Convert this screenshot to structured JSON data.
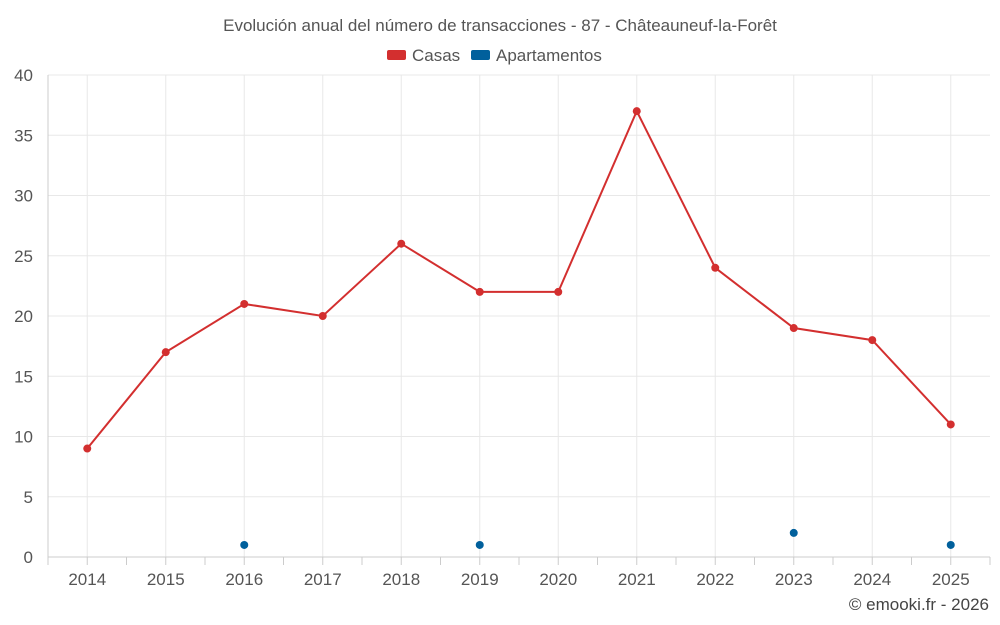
{
  "chart_data": {
    "type": "line",
    "title": "Evolución anual del número de transacciones - 87 - Châteauneuf-la-Forêt",
    "categories": [
      "2014",
      "2015",
      "2016",
      "2017",
      "2018",
      "2019",
      "2020",
      "2021",
      "2022",
      "2023",
      "2024",
      "2025"
    ],
    "series": [
      {
        "name": "Casas",
        "color": "#d32f2f",
        "values": [
          9,
          17,
          21,
          20,
          26,
          22,
          22,
          37,
          24,
          19,
          18,
          11
        ],
        "line": true
      },
      {
        "name": "Apartamentos",
        "color": "#01609c",
        "values": [
          null,
          null,
          1,
          null,
          null,
          1,
          null,
          null,
          null,
          2,
          null,
          1
        ],
        "line": false
      }
    ],
    "ylim": [
      0,
      40
    ],
    "yticks": [
      0,
      5,
      10,
      15,
      20,
      25,
      30,
      35,
      40
    ],
    "grid": true,
    "legend": "top-center"
  },
  "copyright": "© emooki.fr - 2026"
}
